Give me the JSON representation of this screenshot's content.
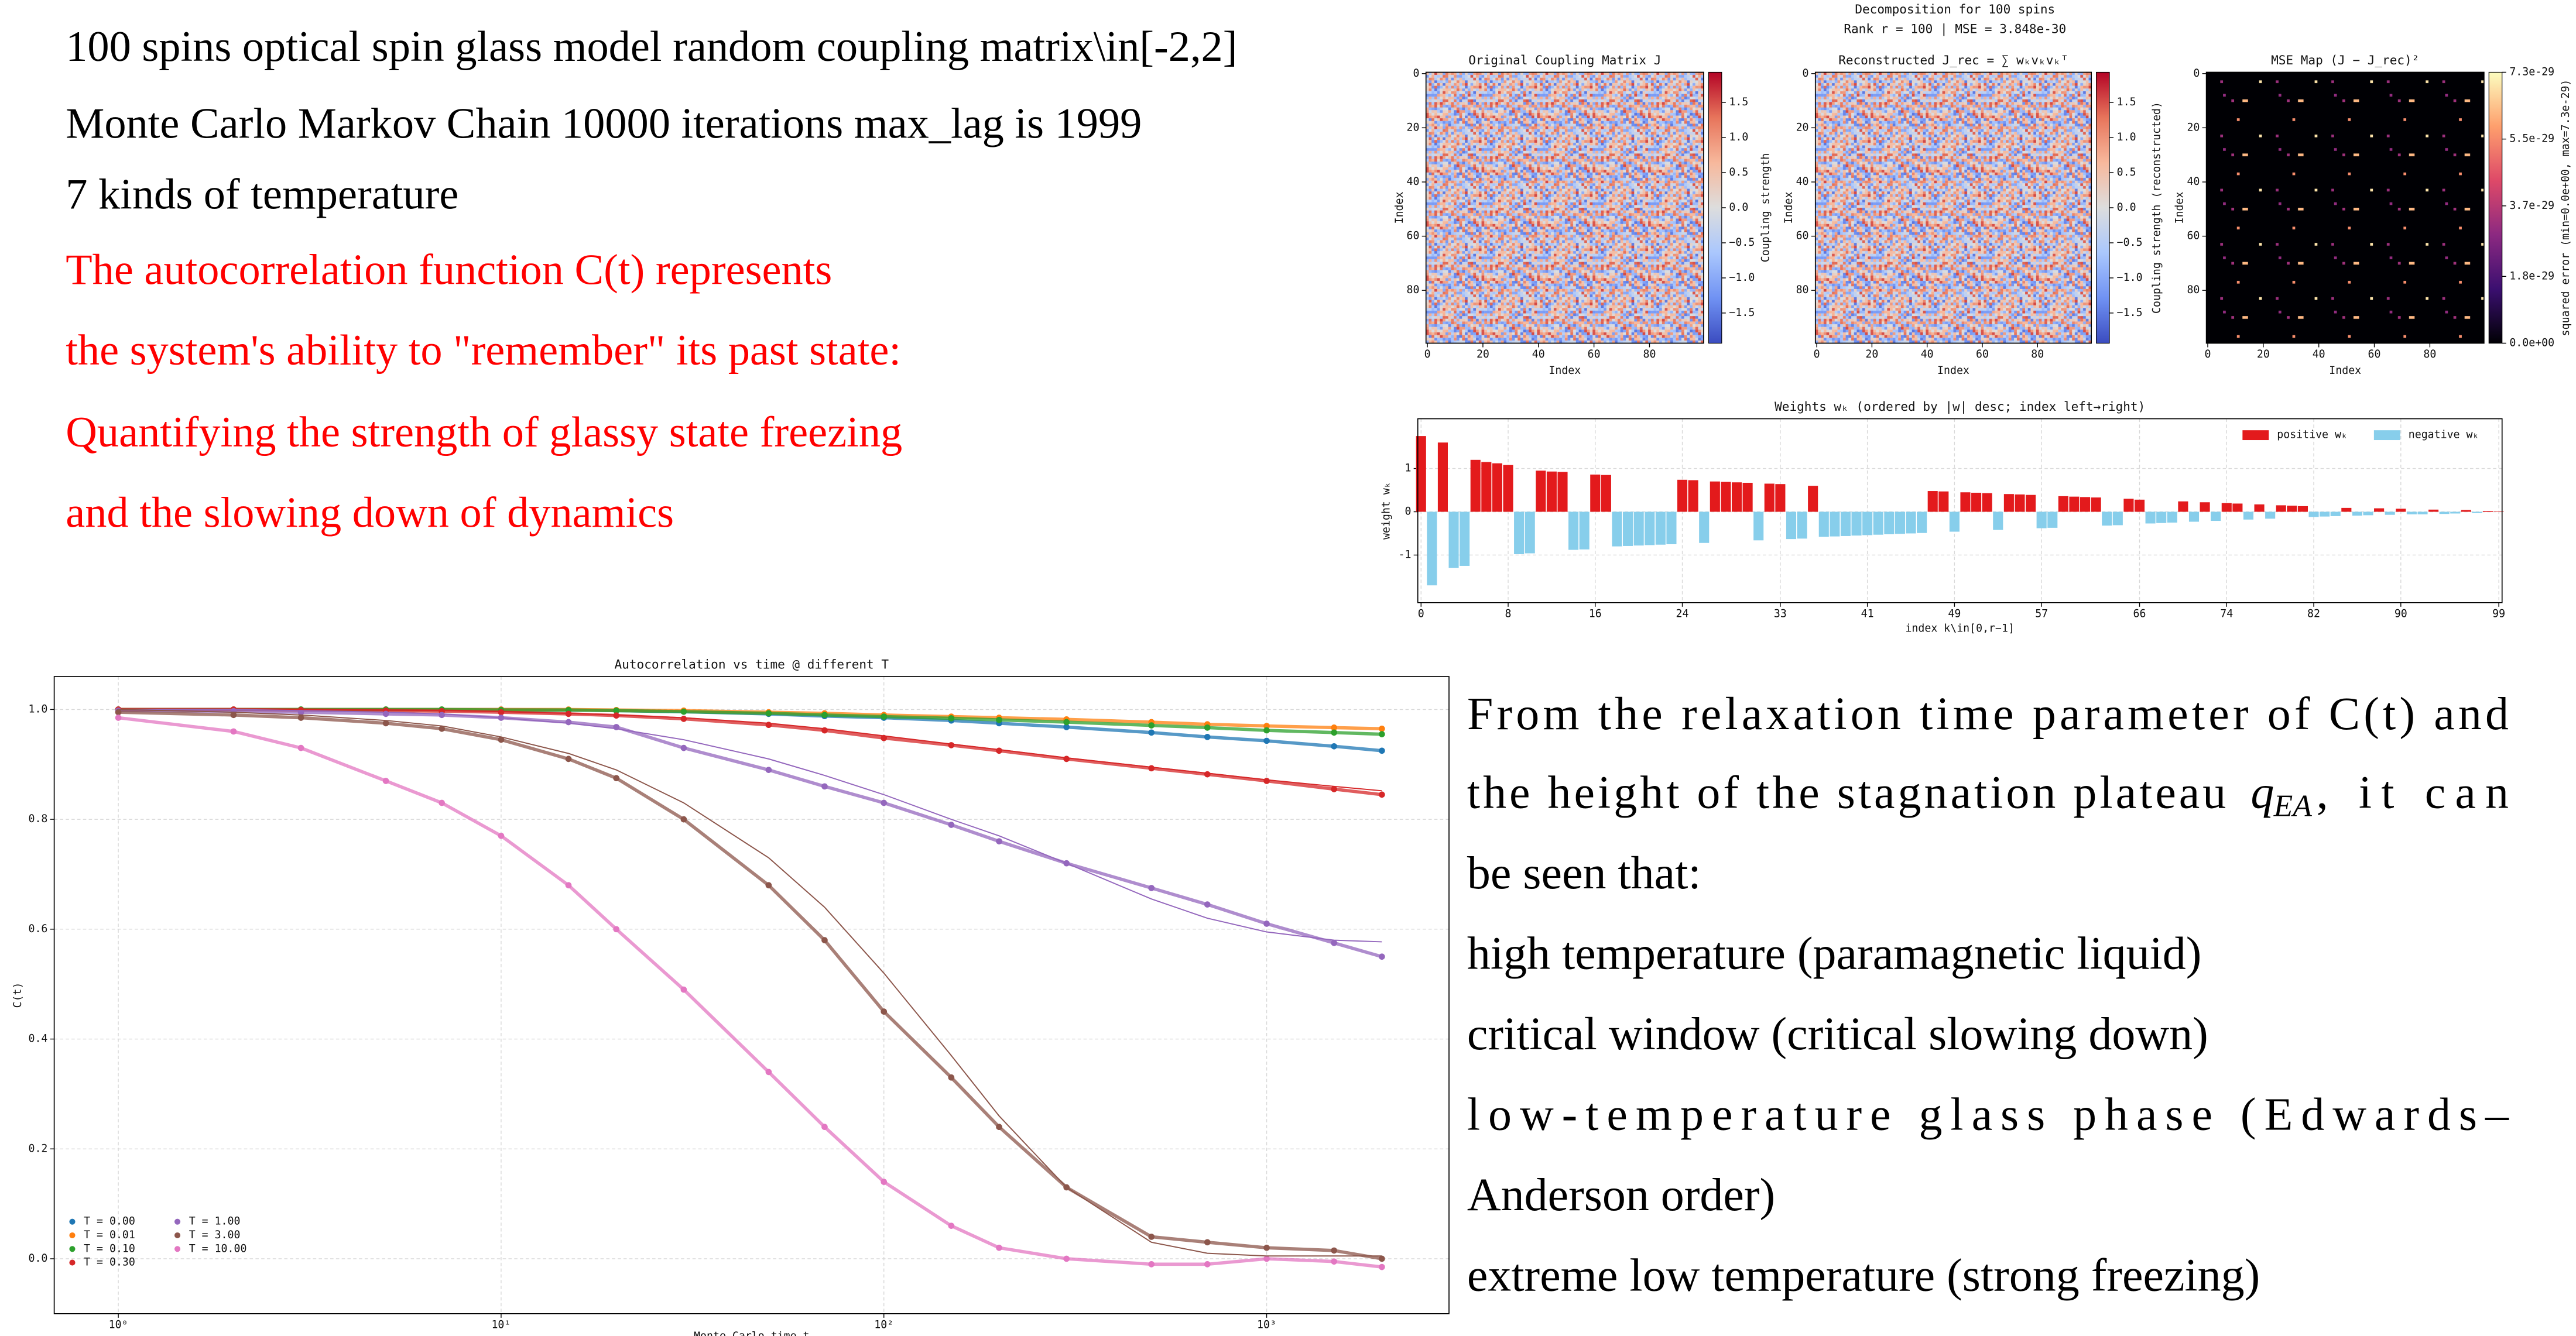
{
  "left_text": {
    "lines_black": [
      "100 spins optical spin glass model random coupling matrix\\in[-2,2]",
      "Monte Carlo Markov Chain 10000 iterations max_lag is 1999",
      "7 kinds of temperature"
    ],
    "lines_red": [
      "The autocorrelation function C(t) represents",
      "the system's ability to \"remember\" its past state:",
      "Quantifying the strength of glassy state freezing",
      "and the slowing down of dynamics"
    ]
  },
  "right_text": {
    "line1": "From the relaxation time parameter of C(t) and",
    "line2": {
      "before": "the height of the stagnation plateau",
      "symbol": "q",
      "subscript": "EA",
      "after": ", it can"
    },
    "line3": "be seen that:",
    "line4": "high temperature (paramagnetic liquid)",
    "line5": "critical window (critical slowing down)",
    "line6": "low-temperature glass phase (Edwards–",
    "line7": "Anderson order)",
    "line8": "extreme low temperature (strong freezing)"
  },
  "figure_title": [
    "Decomposition for 100 spins",
    "Rank r = 100  |  MSE = 3.848e-30"
  ],
  "chart_data": [
    {
      "type": "heatmap",
      "title": "Original Coupling Matrix J",
      "xlabel": "Index",
      "ylabel": "Index",
      "xlim": [
        -0.5,
        99.5
      ],
      "ylim": [
        99.5,
        -0.5
      ],
      "xticks": [
        0,
        20,
        40,
        60,
        80
      ],
      "yticks": [
        0,
        20,
        40,
        60,
        80
      ],
      "colorbar": {
        "label": "Coupling strength",
        "lim": [
          -1.93,
          1.93
        ],
        "ticks": [
          {
            "value": 1.5,
            "label": "1.5"
          },
          {
            "value": 1,
            "label": "1.0"
          },
          0.5,
          {
            "value": 0,
            "label": "0.0"
          },
          {
            "value": -0.5,
            "label": "−0.5"
          },
          {
            "value": -1,
            "label": "−1.0"
          },
          {
            "value": -1.5,
            "label": "−1.5"
          }
        ],
        "colors": [
          "#3b4cc0",
          "#7092f3",
          "#aac7fd",
          "#dddddd",
          "#f7b89c",
          "#e7745b",
          "#b40426"
        ]
      }
    },
    {
      "type": "heatmap",
      "title": "Reconstructed J_rec = ∑ wₖvₖvₖᵀ",
      "xlabel": "Index",
      "ylabel": "Index",
      "xlim": [
        -0.5,
        99.5
      ],
      "ylim": [
        99.5,
        -0.5
      ],
      "xticks": [
        0,
        20,
        40,
        60,
        80
      ],
      "yticks": [
        0,
        20,
        40,
        60,
        80
      ],
      "colorbar": {
        "label": "Coupling strength (reconstructed)",
        "lim": [
          -1.93,
          1.93
        ],
        "ticks": [
          {
            "value": 1.5,
            "label": "1.5"
          },
          {
            "value": 1,
            "label": "1.0"
          },
          0.5,
          {
            "value": 0,
            "label": "0.0"
          },
          {
            "value": -0.5,
            "label": "−0.5"
          },
          {
            "value": -1,
            "label": "−1.0"
          },
          {
            "value": -1.5,
            "label": "−1.5"
          }
        ],
        "colors": [
          "#3b4cc0",
          "#7092f3",
          "#aac7fd",
          "#dddddd",
          "#f7b89c",
          "#e7745b",
          "#b40426"
        ]
      }
    },
    {
      "type": "heatmap",
      "title": "MSE Map (J − J_rec)²",
      "xlabel": "Index",
      "ylabel": "Index",
      "xlim": [
        -0.5,
        99.5
      ],
      "ylim": [
        99.5,
        -0.5
      ],
      "xticks": [
        0,
        20,
        40,
        60,
        80
      ],
      "yticks": [
        0,
        20,
        40,
        60,
        80
      ],
      "colorbar": {
        "label": "squared error (min=0.0e+00, max=7.3e-29)",
        "lim": [
          0,
          7.3e-29
        ],
        "ticks": [
          {
            "value": 0,
            "label": "0.0e+00"
          },
          {
            "value": 1.8e-29,
            "label": "1.8e-29"
          },
          {
            "value": 3.7e-29,
            "label": "3.7e-29"
          },
          {
            "value": 5.5e-29,
            "label": "5.5e-29"
          },
          {
            "value": 7.3e-29,
            "label": "7.3e-29"
          }
        ],
        "colors": [
          "#000004",
          "#3b0f70",
          "#8c2981",
          "#de4968",
          "#fe9f6d",
          "#fcfdbf"
        ]
      }
    },
    {
      "type": "bar",
      "title": "Weights wₖ (ordered by |w| desc; index left→right)",
      "xlabel": "index k\\in[0,r−1]",
      "ylabel": "weight wₖ",
      "x": [
        0,
        1,
        2,
        3,
        4,
        5,
        6,
        7,
        8,
        9,
        10,
        11,
        12,
        13,
        14,
        15,
        16,
        17,
        18,
        19,
        20,
        21,
        22,
        23,
        24,
        25,
        26,
        27,
        28,
        29,
        30,
        31,
        32,
        33,
        34,
        35,
        36,
        37,
        38,
        39,
        40,
        41,
        42,
        43,
        44,
        45,
        46,
        47,
        48,
        49,
        50,
        51,
        52,
        53,
        54,
        55,
        56,
        57,
        58,
        59,
        60,
        61,
        62,
        63,
        64,
        65,
        66,
        67,
        68,
        69,
        70,
        71,
        72,
        73,
        74,
        75,
        76,
        77,
        78,
        79,
        80,
        81,
        82,
        83,
        84,
        85,
        86,
        87,
        88,
        89,
        90,
        91,
        92,
        93,
        94,
        95,
        96,
        97,
        98,
        99
      ],
      "series": [
        {
          "name": "positive wₖ",
          "color": "#e31a1c",
          "values": [
            1.75,
            null,
            1.6,
            null,
            null,
            1.2,
            1.15,
            1.12,
            1.08,
            null,
            null,
            0.95,
            0.93,
            0.92,
            null,
            null,
            0.86,
            0.85,
            null,
            null,
            null,
            null,
            null,
            null,
            0.74,
            0.73,
            null,
            0.7,
            0.69,
            0.68,
            0.67,
            null,
            0.65,
            0.64,
            null,
            null,
            0.6,
            null,
            null,
            null,
            null,
            null,
            null,
            null,
            null,
            null,
            null,
            0.48,
            0.47,
            null,
            0.45,
            0.44,
            0.43,
            null,
            0.41,
            0.4,
            0.39,
            null,
            null,
            0.36,
            0.35,
            0.34,
            0.33,
            null,
            null,
            0.3,
            0.28,
            null,
            null,
            null,
            0.24,
            null,
            0.22,
            null,
            0.2,
            0.19,
            null,
            0.17,
            null,
            0.15,
            0.14,
            0.13,
            null,
            null,
            null,
            0.09,
            null,
            null,
            0.08,
            null,
            0.07,
            null,
            null,
            0.05,
            null,
            null,
            0.04,
            null,
            0.02,
            0.01
          ]
        },
        {
          "name": "negative wₖ",
          "color": "#87ceeb",
          "values": [
            null,
            -1.7,
            null,
            -1.3,
            -1.25,
            null,
            null,
            null,
            null,
            -0.98,
            -0.96,
            null,
            null,
            null,
            -0.88,
            -0.87,
            null,
            null,
            -0.8,
            -0.79,
            -0.78,
            -0.77,
            -0.76,
            -0.75,
            null,
            null,
            -0.72,
            null,
            null,
            null,
            null,
            -0.66,
            null,
            null,
            -0.63,
            -0.62,
            null,
            -0.58,
            -0.57,
            -0.56,
            -0.55,
            -0.54,
            -0.53,
            -0.52,
            -0.51,
            -0.5,
            -0.49,
            null,
            null,
            -0.46,
            null,
            null,
            null,
            -0.42,
            null,
            null,
            null,
            -0.38,
            -0.37,
            null,
            null,
            null,
            null,
            -0.32,
            -0.31,
            null,
            null,
            -0.27,
            -0.26,
            -0.25,
            null,
            -0.23,
            null,
            -0.21,
            null,
            null,
            -0.18,
            null,
            -0.16,
            null,
            null,
            null,
            -0.12,
            -0.11,
            -0.1,
            null,
            -0.09,
            -0.08,
            null,
            -0.07,
            null,
            -0.06,
            -0.06,
            null,
            -0.05,
            -0.04,
            null,
            -0.03,
            null,
            null
          ]
        }
      ],
      "xlim": [
        -0.3,
        99.3
      ],
      "ylim": [
        -2.1,
        2.15
      ],
      "xticks": [
        0,
        8,
        16,
        24,
        33,
        41,
        49,
        57,
        66,
        74,
        82,
        90,
        99
      ],
      "yticks": [
        -1,
        0,
        1
      ],
      "grid": true,
      "legend": "upper right"
    },
    {
      "type": "scatter",
      "title": "Autocorrelation vs time @ different T",
      "xlabel": "Monte-Carlo time t",
      "ylabel": "C(t)",
      "xscale": "log",
      "xlim": [
        0.68,
        2995
      ],
      "ylim": [
        -0.1,
        1.06
      ],
      "xticks": [
        {
          "value": 1,
          "label": "10⁰"
        },
        {
          "value": 10,
          "label": "10¹"
        },
        {
          "value": 100,
          "label": "10²"
        },
        {
          "value": 1000,
          "label": "10³"
        }
      ],
      "yticks": [
        {
          "value": 0,
          "label": "0.0"
        },
        0.2,
        0.4,
        0.6,
        0.8,
        {
          "value": 1,
          "label": "1.0"
        }
      ],
      "grid": true,
      "legend": "lower left",
      "x": [
        1,
        2,
        3,
        5,
        7,
        10,
        15,
        20,
        30,
        50,
        70,
        100,
        150,
        200,
        300,
        500,
        700,
        1000,
        1500,
        2000
      ],
      "series": [
        {
          "name": "T = 0.00",
          "color": "#1f77b4",
          "values": [
            1,
            1,
            1,
            1,
            1,
            1,
            0.999,
            0.998,
            0.996,
            0.992,
            0.988,
            0.985,
            0.98,
            0.975,
            0.968,
            0.958,
            0.95,
            0.943,
            0.933,
            0.925
          ]
        },
        {
          "name": "T = 0.01",
          "color": "#ff7f0e",
          "values": [
            1,
            1,
            1,
            1,
            1,
            1,
            1,
            0.999,
            0.998,
            0.995,
            0.993,
            0.99,
            0.987,
            0.985,
            0.982,
            0.977,
            0.973,
            0.97,
            0.967,
            0.965
          ]
        },
        {
          "name": "T = 0.10",
          "color": "#2ca02c",
          "values": [
            1,
            1,
            1,
            1,
            1,
            0.999,
            0.999,
            0.998,
            0.996,
            0.993,
            0.99,
            0.987,
            0.984,
            0.981,
            0.977,
            0.971,
            0.967,
            0.962,
            0.958,
            0.955
          ]
        },
        {
          "name": "T = 0.30",
          "color": "#d62728",
          "values": [
            1,
            1,
            0.999,
            0.998,
            0.997,
            0.995,
            0.992,
            0.989,
            0.983,
            0.972,
            0.962,
            0.948,
            0.935,
            0.925,
            0.91,
            0.893,
            0.882,
            0.87,
            0.855,
            0.845
          ]
        },
        {
          "name": "T = 1.00",
          "color": "#9467bd",
          "values": [
            0.998,
            0.997,
            0.995,
            0.992,
            0.99,
            0.985,
            0.977,
            0.968,
            0.93,
            0.89,
            0.86,
            0.83,
            0.79,
            0.76,
            0.72,
            0.675,
            0.645,
            0.61,
            0.575,
            0.55
          ]
        },
        {
          "name": "T = 3.00",
          "color": "#8c564b",
          "values": [
            0.995,
            0.99,
            0.985,
            0.975,
            0.965,
            0.945,
            0.91,
            0.875,
            0.8,
            0.68,
            0.58,
            0.45,
            0.33,
            0.24,
            0.13,
            0.04,
            0.03,
            0.02,
            0.015,
            0
          ]
        },
        {
          "name": "T = 10.00",
          "color": "#e377c2",
          "values": [
            0.985,
            0.96,
            0.93,
            0.87,
            0.83,
            0.77,
            0.68,
            0.6,
            0.49,
            0.34,
            0.24,
            0.14,
            0.06,
            0.02,
            0,
            -0.01,
            -0.01,
            0,
            -0.005,
            -0.015
          ]
        }
      ],
      "fits": [
        {
          "color": "#d62728",
          "values": [
            1,
            1,
            1,
            0.999,
            0.998,
            0.996,
            0.993,
            0.99,
            0.985,
            0.975,
            0.965,
            0.952,
            0.937,
            0.927,
            0.912,
            0.895,
            0.884,
            0.872,
            0.86,
            0.852
          ]
        },
        {
          "color": "#9467bd",
          "values": [
            1,
            1,
            0.998,
            0.995,
            0.992,
            0.985,
            0.975,
            0.965,
            0.945,
            0.91,
            0.88,
            0.845,
            0.8,
            0.77,
            0.72,
            0.655,
            0.62,
            0.595,
            0.58,
            0.577
          ]
        },
        {
          "color": "#8c564b",
          "values": [
            1,
            0.995,
            0.99,
            0.98,
            0.97,
            0.95,
            0.92,
            0.89,
            0.83,
            0.73,
            0.64,
            0.52,
            0.37,
            0.26,
            0.13,
            0.03,
            0.01,
            0.005,
            0.005,
            0.005
          ]
        }
      ]
    }
  ]
}
